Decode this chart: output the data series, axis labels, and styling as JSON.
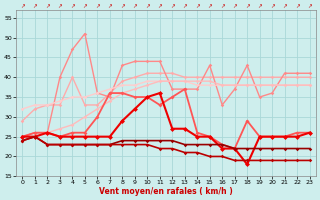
{
  "xlabel": "Vent moyen/en rafales ( km/h )",
  "bg_color": "#ceeeed",
  "grid_color": "#aad8d8",
  "xlim": [
    -0.5,
    23.5
  ],
  "ylim": [
    15,
    57
  ],
  "yticks": [
    15,
    20,
    25,
    30,
    35,
    40,
    45,
    50,
    55
  ],
  "xticks": [
    0,
    1,
    2,
    3,
    4,
    5,
    6,
    7,
    8,
    9,
    10,
    11,
    12,
    13,
    14,
    15,
    16,
    17,
    18,
    19,
    20,
    21,
    22,
    23
  ],
  "series": [
    {
      "x": [
        0,
        1,
        2,
        3,
        4,
        5,
        6,
        7,
        8,
        9,
        10,
        11,
        12,
        13,
        14,
        15,
        16,
        17,
        18,
        19,
        20,
        21,
        22,
        23
      ],
      "y": [
        29,
        32,
        33,
        33,
        40,
        33,
        33,
        36,
        39,
        40,
        41,
        41,
        41,
        40,
        40,
        40,
        40,
        40,
        40,
        40,
        40,
        40,
        40,
        40
      ],
      "color": "#ffaaaa",
      "lw": 1.0,
      "marker": "D",
      "ms": 1.8
    },
    {
      "x": [
        0,
        1,
        2,
        3,
        4,
        5,
        6,
        7,
        8,
        9,
        10,
        11,
        12,
        13,
        14,
        15,
        16,
        17,
        18,
        19,
        20,
        21,
        22,
        23
      ],
      "y": [
        25,
        26,
        26,
        40,
        47,
        51,
        36,
        35,
        43,
        44,
        44,
        44,
        37,
        37,
        37,
        43,
        33,
        37,
        43,
        35,
        36,
        41,
        41,
        41
      ],
      "color": "#ff8888",
      "lw": 1.0,
      "marker": "D",
      "ms": 1.8
    },
    {
      "x": [
        0,
        1,
        2,
        3,
        4,
        5,
        6,
        7,
        8,
        9,
        10,
        11,
        12,
        13,
        14,
        15,
        16,
        17,
        18,
        19,
        20,
        21,
        22,
        23
      ],
      "y": [
        32,
        33,
        33,
        34,
        35,
        35,
        36,
        37,
        38,
        38,
        39,
        39,
        39,
        39,
        38,
        38,
        38,
        38,
        38,
        38,
        38,
        38,
        38,
        38
      ],
      "color": "#ffcccc",
      "lw": 1.0,
      "marker": "D",
      "ms": 1.8
    },
    {
      "x": [
        0,
        1,
        2,
        3,
        4,
        5,
        6,
        7,
        8,
        9,
        10,
        11,
        12,
        13,
        14,
        15,
        16,
        17,
        18,
        19,
        20,
        21,
        22,
        23
      ],
      "y": [
        25,
        26,
        26,
        27,
        28,
        30,
        32,
        34,
        36,
        37,
        38,
        39,
        39,
        39,
        39,
        39,
        38,
        38,
        38,
        38,
        38,
        38,
        38,
        38
      ],
      "color": "#ffbbbb",
      "lw": 1.0,
      "marker": "D",
      "ms": 1.8
    },
    {
      "x": [
        0,
        1,
        2,
        3,
        4,
        5,
        6,
        7,
        8,
        9,
        10,
        11,
        12,
        13,
        14,
        15,
        16,
        17,
        18,
        19,
        20,
        21,
        22,
        23
      ],
      "y": [
        25,
        26,
        26,
        25,
        26,
        26,
        30,
        36,
        36,
        35,
        35,
        33,
        35,
        37,
        26,
        25,
        23,
        22,
        29,
        25,
        25,
        25,
        26,
        26
      ],
      "color": "#ff5555",
      "lw": 1.3,
      "marker": "D",
      "ms": 2.0
    },
    {
      "x": [
        0,
        1,
        2,
        3,
        4,
        5,
        6,
        7,
        8,
        9,
        10,
        11,
        12,
        13,
        14,
        15,
        16,
        17,
        18,
        19,
        20,
        21,
        22,
        23
      ],
      "y": [
        25,
        25,
        26,
        25,
        25,
        25,
        25,
        25,
        29,
        32,
        35,
        36,
        27,
        27,
        25,
        25,
        22,
        22,
        18,
        25,
        25,
        25,
        25,
        26
      ],
      "color": "#ee0000",
      "lw": 1.5,
      "marker": "D",
      "ms": 2.5
    },
    {
      "x": [
        0,
        1,
        2,
        3,
        4,
        5,
        6,
        7,
        8,
        9,
        10,
        11,
        12,
        13,
        14,
        15,
        16,
        17,
        18,
        19,
        20,
        21,
        22,
        23
      ],
      "y": [
        24,
        25,
        23,
        23,
        23,
        23,
        23,
        23,
        24,
        24,
        24,
        24,
        24,
        23,
        23,
        23,
        23,
        22,
        22,
        22,
        22,
        22,
        22,
        22
      ],
      "color": "#990000",
      "lw": 1.2,
      "marker": "D",
      "ms": 1.8
    },
    {
      "x": [
        0,
        1,
        2,
        3,
        4,
        5,
        6,
        7,
        8,
        9,
        10,
        11,
        12,
        13,
        14,
        15,
        16,
        17,
        18,
        19,
        20,
        21,
        22,
        23
      ],
      "y": [
        24,
        25,
        23,
        23,
        23,
        23,
        23,
        23,
        23,
        23,
        23,
        22,
        22,
        21,
        21,
        20,
        20,
        19,
        19,
        19,
        19,
        19,
        19,
        19
      ],
      "color": "#bb0000",
      "lw": 1.2,
      "marker": "D",
      "ms": 1.8
    }
  ]
}
